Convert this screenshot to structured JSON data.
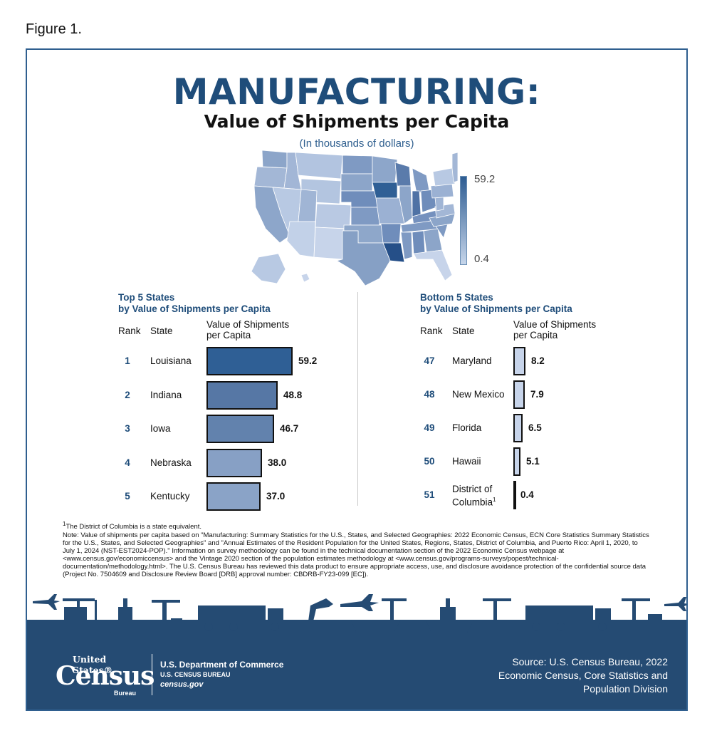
{
  "figure_label": "Figure 1.",
  "chart_data": {
    "type": "bar",
    "title": "MANUFACTURING:",
    "subtitle": "Value of Shipments per Capita",
    "units": "(In thousands of dollars)",
    "legend": {
      "max": "59.2",
      "min": "0.4"
    },
    "top5": {
      "title_line1": "Top 5 States",
      "title_line2": "by Value of Shipments per Capita",
      "headers": {
        "rank": "Rank",
        "state": "State",
        "value_line1": "Value of Shipments",
        "value_line2": "per Capita"
      },
      "rows": [
        {
          "rank": "1",
          "state": "Louisiana",
          "value": 59.2,
          "label": "59.2",
          "color": "#2f5f95"
        },
        {
          "rank": "2",
          "state": "Indiana",
          "value": 48.8,
          "label": "48.8",
          "color": "#5677a5"
        },
        {
          "rank": "3",
          "state": "Iowa",
          "value": 46.7,
          "label": "46.7",
          "color": "#6282ad"
        },
        {
          "rank": "4",
          "state": "Nebraska",
          "value": 38.0,
          "label": "38.0",
          "color": "#87a0c5"
        },
        {
          "rank": "5",
          "state": "Kentucky",
          "value": 37.0,
          "label": "37.0",
          "color": "#8aa3c7"
        }
      ]
    },
    "bottom5": {
      "title_line1": "Bottom 5 States",
      "title_line2": "by Value of Shipments per Capita",
      "headers": {
        "rank": "Rank",
        "state": "State",
        "value_line1": "Value of Shipments",
        "value_line2": "per Capita"
      },
      "rows": [
        {
          "rank": "47",
          "state": "Maryland",
          "state_line2": "",
          "value": 8.2,
          "label": "8.2",
          "color": "#c7d4ea"
        },
        {
          "rank": "48",
          "state": "New Mexico",
          "state_line2": "",
          "value": 7.9,
          "label": "7.9",
          "color": "#c7d4ea"
        },
        {
          "rank": "49",
          "state": "Florida",
          "state_line2": "",
          "value": 6.5,
          "label": "6.5",
          "color": "#c7d4ea"
        },
        {
          "rank": "50",
          "state": "Hawaii",
          "state_line2": "",
          "value": 5.1,
          "label": "5.1",
          "color": "#c7d4ea"
        },
        {
          "rank": "51",
          "state": "District of",
          "state_line2": "Columbia",
          "value": 0.4,
          "label": "0.4",
          "color": "#c7d4ea"
        }
      ]
    }
  },
  "footnote": {
    "marker": "1",
    "text": "The District of Columbia is a state equivalent."
  },
  "note": "Note: Value of shipments per capita based on \"Manufacturing: Summary Statistics for the U.S., States, and Selected Geographies: 2022 Economic Census, ECN Core Statistics Summary Statistics for the U.S., States, and Selected Geographies\" and \"Annual Estimates of the Resident Population for the United States, Regions, States, District of Columbia, and Puerto Rico: April 1, 2020, to July 1, 2024 (NST-EST2024-POP).\" Information on survey methodology can be found in the technical documentation section of the 2022 Economic Census webpage at <www.census.gov/economiccensus> and the Vintage 2020 section of the population estimates methodology at <www.census.gov/programs-surveys/popest/technical-documentation/methodology.html>. The U.S. Census Bureau has reviewed this data product to ensure appropriate access, use, and disclosure avoidance protection of the confidential source data (Project No. 7504609 and Disclosure Review Board [DRB] approval number: CBDRB-FY23-099 [EC]).",
  "footer": {
    "logo_us": "United States®",
    "logo_census": "Census",
    "logo_bureau": "Bureau",
    "dept_line1": "U.S. Department of Commerce",
    "dept_line2": "U.S. CENSUS BUREAU",
    "dept_line3": "census.gov",
    "source_line1": "Source: U.S. Census Bureau, 2022",
    "source_line2": "Economic Census, Core Statistics and",
    "source_line3": "Population Division"
  },
  "colors": {
    "navy": "#1f4d7a",
    "footer": "#254b73",
    "scale_dark": "#2d5c92",
    "scale_light": "#c6d5ea"
  }
}
